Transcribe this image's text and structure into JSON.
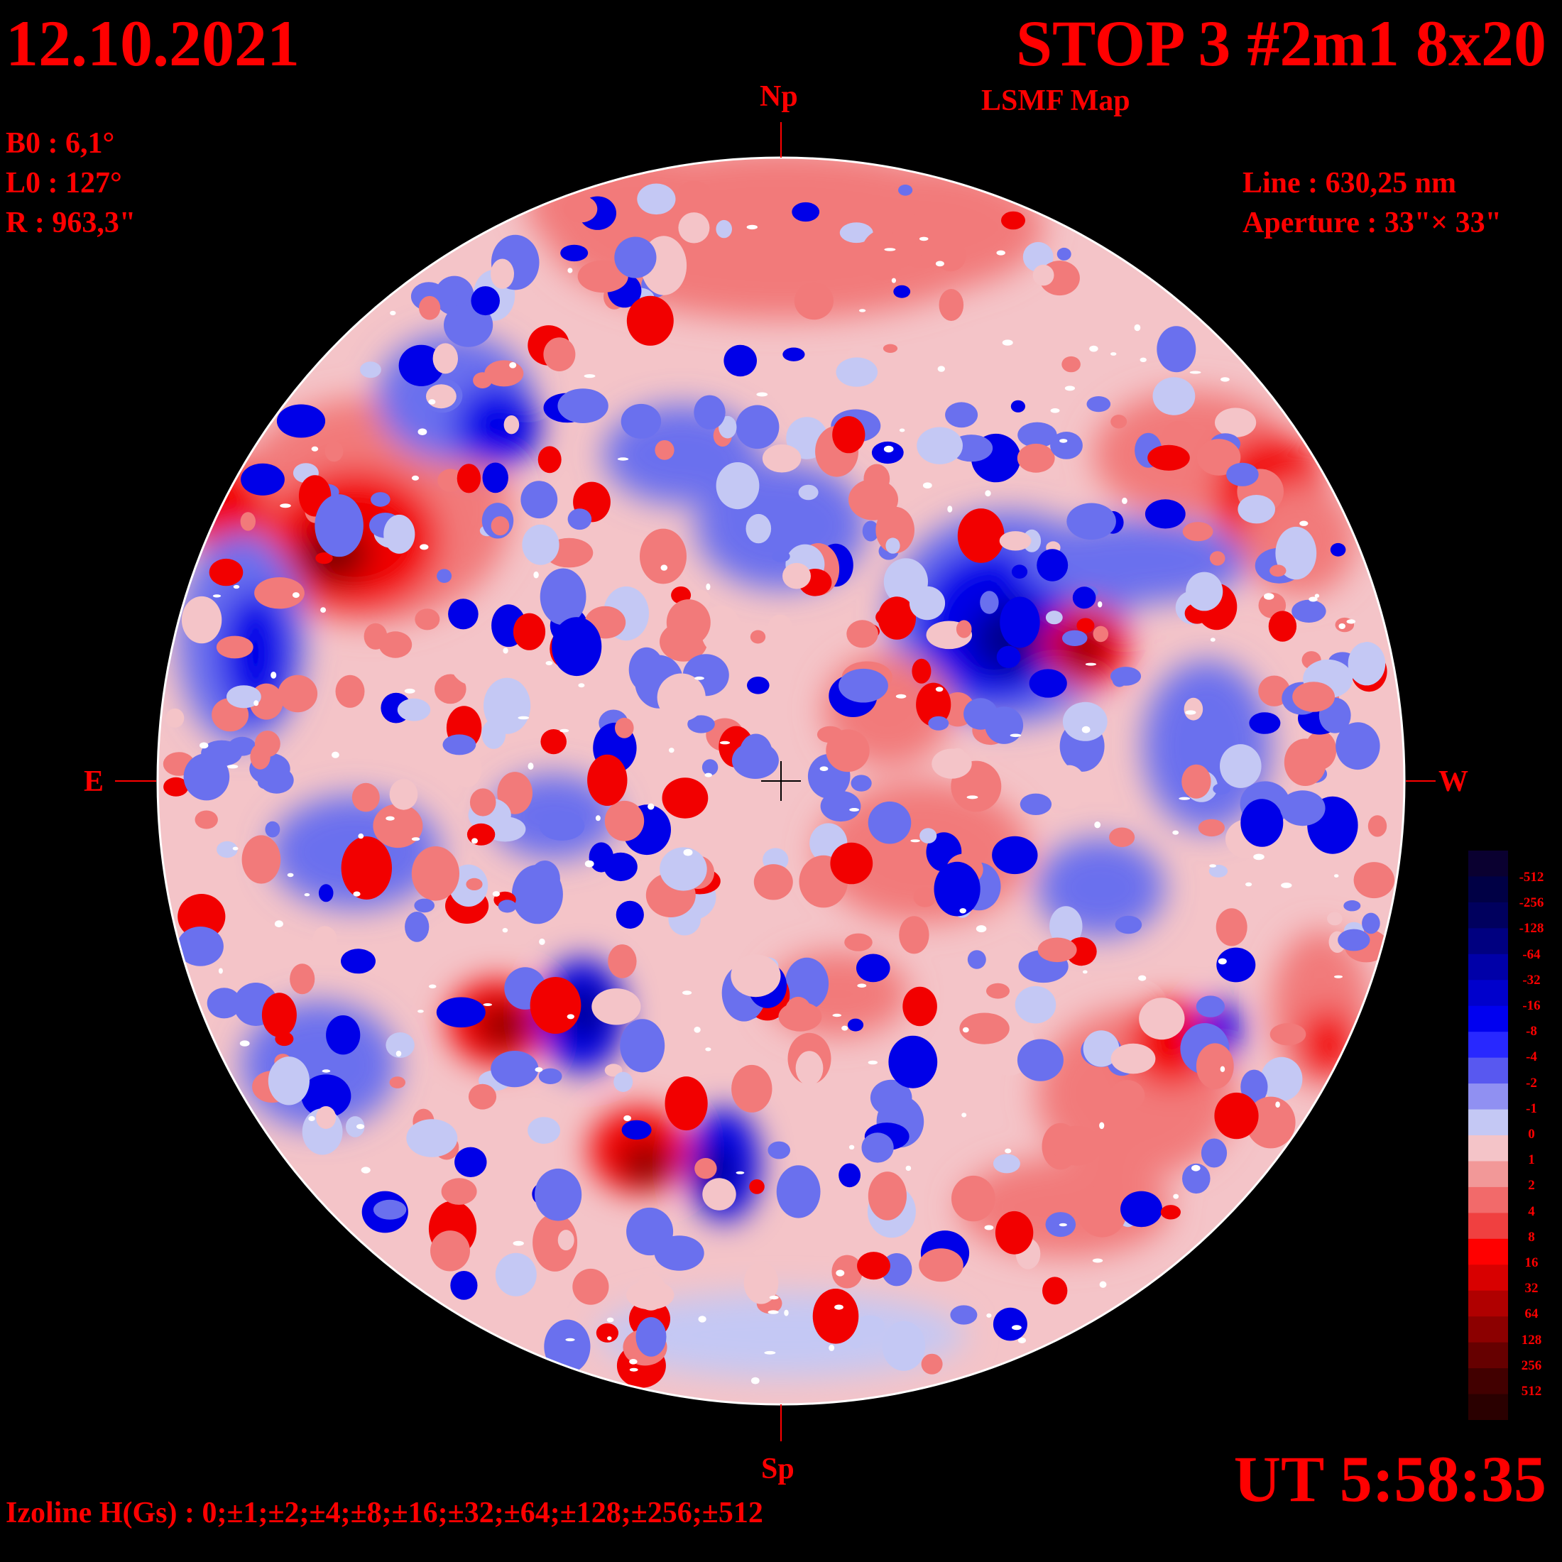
{
  "header": {
    "date": "12.10.2021",
    "title": "STOP 3 #2m1 8x20",
    "subtitle": "LSMF  Map"
  },
  "params": {
    "b0": "B0 : 6,1°",
    "l0": "L0 : 127°",
    "radius": "R  : 963,3\"",
    "line": "Line :  630,25 nm",
    "aperture": "Aperture : 33\"× 33\""
  },
  "orientation": {
    "north": "Np",
    "south": "Sp",
    "east": "E",
    "west": "W"
  },
  "time": "UT 5:58:35",
  "izoline": "Izoline H(Gs) : 0;±1;±2;±4;±8;±16;±32;±64;±128;±256;±512",
  "colorbar": {
    "labels": [
      "-512",
      "-256",
      "-128",
      "-64",
      "-32",
      "-16",
      "-8",
      "-4",
      "-2",
      "-1",
      "0",
      "1",
      "2",
      "4",
      "8",
      "16",
      "32",
      "64",
      "128",
      "256",
      "512"
    ],
    "colors": [
      "#0a0030",
      "#000045",
      "#00005e",
      "#000080",
      "#0000a8",
      "#0000cc",
      "#0000f0",
      "#2828ff",
      "#5858f0",
      "#9090f2",
      "#c4c8f4",
      "#f4c4c8",
      "#f29898",
      "#f26a6a",
      "#f04040",
      "#ff0000",
      "#d80000",
      "#b00000",
      "#8c0000",
      "#660000",
      "#420000",
      "#2a0000"
    ]
  },
  "disk_colors": {
    "neg_strong": "#00008c",
    "neg_mid": "#0000e8",
    "neg_weak": "#6a70ee",
    "neg_faint": "#c4c8f4",
    "pos_faint": "#f4c4c8",
    "pos_weak": "#f27a7a",
    "pos_mid": "#f20000",
    "pos_strong": "#7a0000",
    "limb": "#ffffff"
  }
}
